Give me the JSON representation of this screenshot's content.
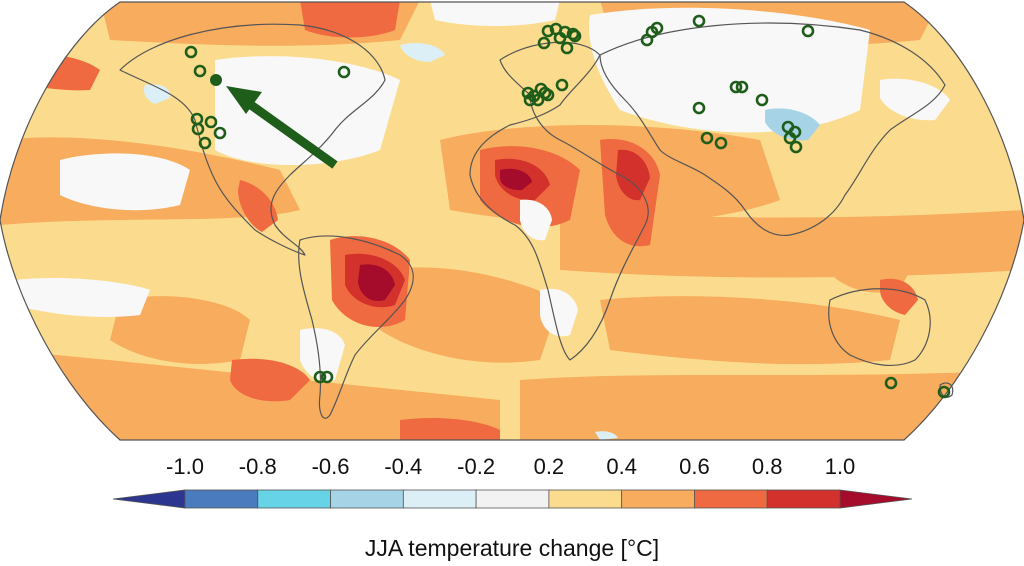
{
  "chart_data": {
    "type": "heatmap",
    "title": "",
    "colorbar": {
      "label": "JJA temperature change [°C]",
      "tick_labels": [
        "-1.0",
        "-0.8",
        "-0.6",
        "-0.4",
        "-0.2",
        "0.2",
        "0.4",
        "0.6",
        "0.8",
        "1.0"
      ],
      "bins": [
        {
          "min": -1.2,
          "max": -1.0,
          "color": "#2c3590"
        },
        {
          "min": -1.0,
          "max": -0.8,
          "color": "#4a7bbf"
        },
        {
          "min": -0.8,
          "max": -0.6,
          "color": "#67d3e6"
        },
        {
          "min": -0.6,
          "max": -0.4,
          "color": "#a7d3e6"
        },
        {
          "min": -0.4,
          "max": -0.2,
          "color": "#dceff6"
        },
        {
          "min": -0.2,
          "max": 0.2,
          "color": "#f2f2f2"
        },
        {
          "min": 0.2,
          "max": 0.4,
          "color": "#fbdc8e"
        },
        {
          "min": 0.4,
          "max": 0.6,
          "color": "#f7ac5e"
        },
        {
          "min": 0.6,
          "max": 0.8,
          "color": "#ef6a40"
        },
        {
          "min": 0.8,
          "max": 1.0,
          "color": "#d3312c"
        },
        {
          "min": 1.0,
          "max": 1.2,
          "color": "#a50b2b"
        }
      ]
    },
    "projection": "Robinson",
    "markers": {
      "color": "#1f5e1a",
      "open_circle_count": 46,
      "highlighted_site": "filled circle in western North America indicated by an arrow"
    }
  }
}
